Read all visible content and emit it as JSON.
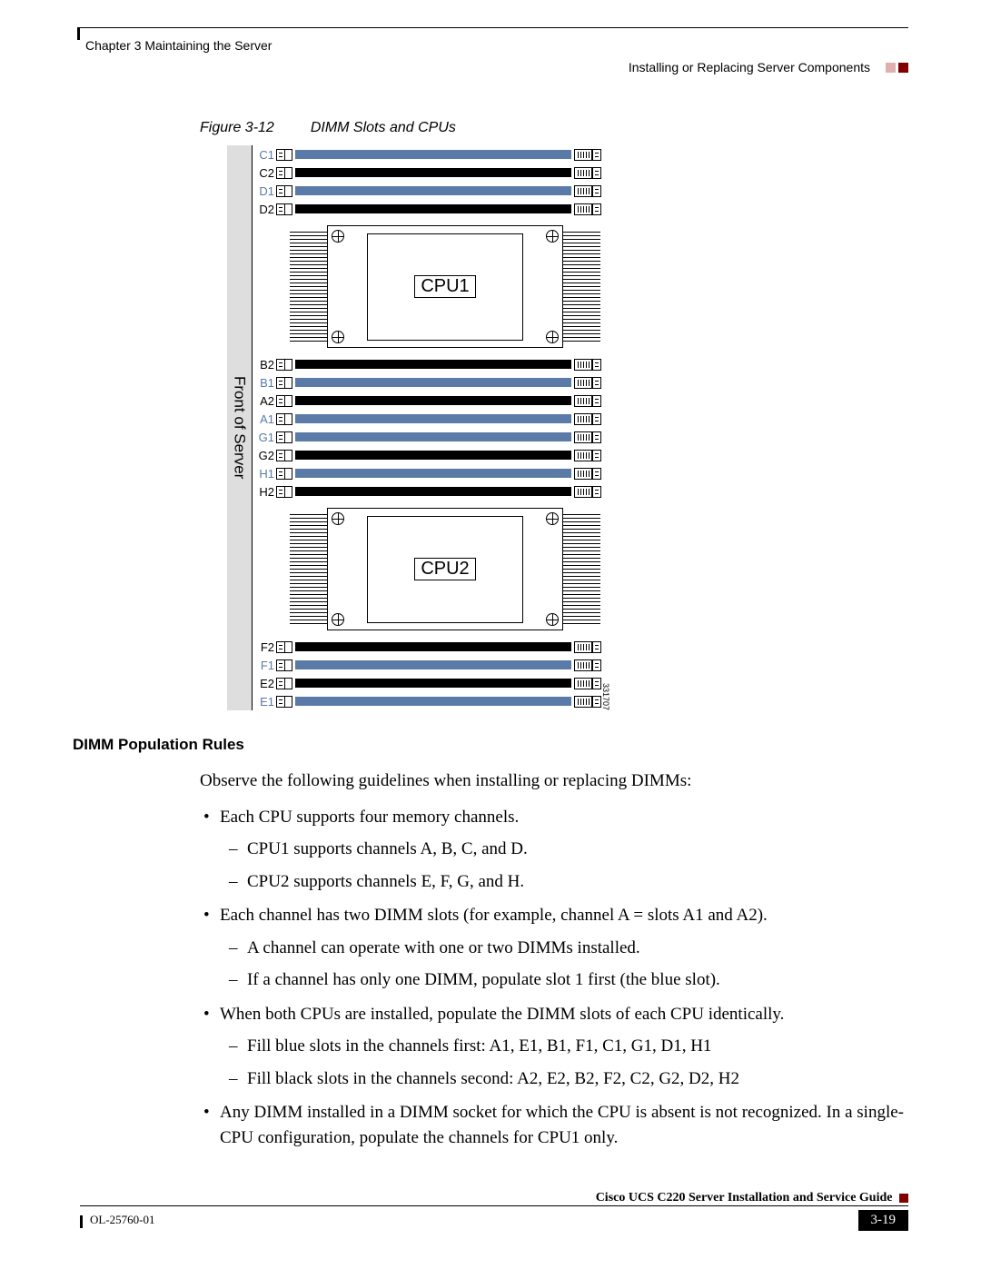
{
  "header": {
    "chapter": "Chapter 3    Maintaining the Server",
    "section": "Installing or Replacing Server Components"
  },
  "figure": {
    "number": "Figure 3-12",
    "title": "DIMM Slots and CPUs",
    "front_label": "Front of Server",
    "diagram_id": "331707",
    "cpu1_label": "CPU1",
    "cpu2_label": "CPU2",
    "group_top": [
      {
        "l": "C1",
        "blue": true
      },
      {
        "l": "C2",
        "blue": false
      },
      {
        "l": "D1",
        "blue": true
      },
      {
        "l": "D2",
        "blue": false
      }
    ],
    "group_mid": [
      {
        "l": "B2",
        "blue": false
      },
      {
        "l": "B1",
        "blue": true
      },
      {
        "l": "A2",
        "blue": false
      },
      {
        "l": "A1",
        "blue": true
      },
      {
        "l": "G1",
        "blue": true
      },
      {
        "l": "G2",
        "blue": false
      },
      {
        "l": "H1",
        "blue": true
      },
      {
        "l": "H2",
        "blue": false
      }
    ],
    "group_bottom": [
      {
        "l": "F2",
        "blue": false
      },
      {
        "l": "F1",
        "blue": true
      },
      {
        "l": "E2",
        "blue": false
      },
      {
        "l": "E1",
        "blue": true
      }
    ],
    "colors": {
      "blue_slot": "#5a7aa8",
      "black_slot": "#000000",
      "strip_bg": "#dedede"
    }
  },
  "rules": {
    "heading": "DIMM Population Rules",
    "intro": "Observe the following guidelines when installing or replacing DIMMs:",
    "items": [
      {
        "text": "Each CPU supports four memory channels.",
        "sub": [
          "CPU1 supports channels A, B, C, and D.",
          "CPU2 supports channels E, F, G, and H."
        ]
      },
      {
        "text": "Each channel has two DIMM slots (for example, channel A = slots A1 and A2).",
        "sub": [
          "A channel can operate with one or two DIMMs installed.",
          "If a channel has only one DIMM, populate slot 1 first (the blue slot)."
        ]
      },
      {
        "text": "When both CPUs are installed, populate the DIMM slots of each CPU identically.",
        "sub": [
          "Fill blue slots in the channels first: A1, E1, B1, F1, C1, G1, D1, H1",
          "Fill black slots in the channels second: A2, E2, B2, F2, C2, G2, D2, H2"
        ]
      },
      {
        "text": "Any DIMM installed in a DIMM socket for which the CPU is absent is not recognized. In a single-CPU configuration, populate the channels for CPU1 only.",
        "sub": []
      }
    ]
  },
  "footer": {
    "guide_title": "Cisco UCS C220 Server Installation and Service Guide",
    "doc_code": "OL-25760-01",
    "page_number": "3-19"
  }
}
